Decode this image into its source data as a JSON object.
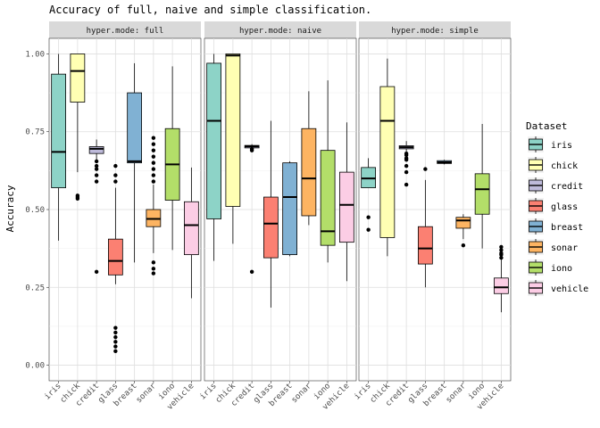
{
  "chart_data": {
    "type": "boxplot",
    "title": "Accuracy of full, naive and simple classification.",
    "ylabel": "Accuracy",
    "xlabel": "",
    "ylim": [
      -0.05,
      1.05
    ],
    "yticks": [
      0.0,
      0.25,
      0.5,
      0.75,
      1.0
    ],
    "ytick_labels": [
      "0.00",
      "0.25",
      "0.50",
      "0.75",
      "1.00"
    ],
    "categories": [
      "iris",
      "chick",
      "credit",
      "glass",
      "breast",
      "sonar",
      "iono",
      "vehicle"
    ],
    "colors": [
      "#8dd3c7",
      "#ffffb3",
      "#bebada",
      "#fb8072",
      "#80b1d3",
      "#fdb462",
      "#b3de69",
      "#fccde5"
    ],
    "legend": {
      "title": "Dataset",
      "position": "right"
    },
    "grid": true,
    "panels": [
      {
        "label": "hyper.mode: full",
        "boxes": [
          {
            "category": "iris",
            "min": 0.4,
            "q1": 0.57,
            "median": 0.685,
            "q3": 0.935,
            "max": 1.0,
            "outliers": []
          },
          {
            "category": "chick",
            "min": 0.62,
            "q1": 0.845,
            "median": 0.945,
            "q3": 1.0,
            "max": 1.0,
            "outliers": [
              0.535,
              0.54,
              0.545
            ]
          },
          {
            "category": "credit",
            "min": 0.655,
            "q1": 0.68,
            "median": 0.695,
            "q3": 0.702,
            "max": 0.725,
            "outliers": [
              0.3,
              0.59,
              0.61,
              0.63,
              0.64,
              0.655
            ]
          },
          {
            "category": "glass",
            "min": 0.26,
            "q1": 0.29,
            "median": 0.335,
            "q3": 0.405,
            "max": 0.57,
            "outliers": [
              0.045,
              0.06,
              0.075,
              0.09,
              0.105,
              0.12,
              0.59,
              0.61,
              0.64
            ]
          },
          {
            "category": "breast",
            "min": 0.33,
            "q1": 0.65,
            "median": 0.655,
            "q3": 0.875,
            "max": 0.97,
            "outliers": []
          },
          {
            "category": "sonar",
            "min": 0.36,
            "q1": 0.445,
            "median": 0.47,
            "q3": 0.5,
            "max": 0.58,
            "outliers": [
              0.295,
              0.31,
              0.33,
              0.59,
              0.61,
              0.63,
              0.65,
              0.67,
              0.69,
              0.71,
              0.73
            ]
          },
          {
            "category": "iono",
            "min": 0.37,
            "q1": 0.53,
            "median": 0.645,
            "q3": 0.76,
            "max": 0.96,
            "outliers": []
          },
          {
            "category": "vehicle",
            "min": 0.215,
            "q1": 0.355,
            "median": 0.45,
            "q3": 0.525,
            "max": 0.635,
            "outliers": []
          }
        ]
      },
      {
        "label": "hyper.mode: naive",
        "boxes": [
          {
            "category": "iris",
            "min": 0.335,
            "q1": 0.47,
            "median": 0.785,
            "q3": 0.97,
            "max": 1.0,
            "outliers": []
          },
          {
            "category": "chick",
            "min": 0.39,
            "q1": 0.51,
            "median": 0.995,
            "q3": 1.0,
            "max": 1.0,
            "outliers": []
          },
          {
            "category": "credit",
            "min": 0.69,
            "q1": 0.698,
            "median": 0.703,
            "q3": 0.706,
            "max": 0.71,
            "outliers": [
              0.3,
              0.69,
              0.695
            ]
          },
          {
            "category": "glass",
            "min": 0.185,
            "q1": 0.345,
            "median": 0.455,
            "q3": 0.54,
            "max": 0.785,
            "outliers": []
          },
          {
            "category": "breast",
            "min": 0.35,
            "q1": 0.355,
            "median": 0.54,
            "q3": 0.65,
            "max": 0.655,
            "outliers": []
          },
          {
            "category": "sonar",
            "min": 0.45,
            "q1": 0.48,
            "median": 0.6,
            "q3": 0.76,
            "max": 0.88,
            "outliers": []
          },
          {
            "category": "iono",
            "min": 0.33,
            "q1": 0.385,
            "median": 0.43,
            "q3": 0.69,
            "max": 0.915,
            "outliers": []
          },
          {
            "category": "vehicle",
            "min": 0.27,
            "q1": 0.395,
            "median": 0.515,
            "q3": 0.62,
            "max": 0.78,
            "outliers": []
          }
        ]
      },
      {
        "label": "hyper.mode: simple",
        "boxes": [
          {
            "category": "iris",
            "min": 0.57,
            "q1": 0.57,
            "median": 0.6,
            "q3": 0.635,
            "max": 0.665,
            "outliers": [
              0.435,
              0.475
            ]
          },
          {
            "category": "chick",
            "min": 0.35,
            "q1": 0.41,
            "median": 0.785,
            "q3": 0.895,
            "max": 0.985,
            "outliers": []
          },
          {
            "category": "credit",
            "min": 0.68,
            "q1": 0.695,
            "median": 0.7,
            "q3": 0.705,
            "max": 0.72,
            "outliers": [
              0.58,
              0.62,
              0.64,
              0.66,
              0.665,
              0.675,
              0.68
            ]
          },
          {
            "category": "glass",
            "min": 0.25,
            "q1": 0.325,
            "median": 0.375,
            "q3": 0.445,
            "max": 0.595,
            "outliers": [
              0.63
            ]
          },
          {
            "category": "breast",
            "min": 0.645,
            "q1": 0.648,
            "median": 0.652,
            "q3": 0.657,
            "max": 0.66,
            "outliers": []
          },
          {
            "category": "sonar",
            "min": 0.405,
            "q1": 0.44,
            "median": 0.465,
            "q3": 0.475,
            "max": 0.485,
            "outliers": [
              0.385
            ]
          },
          {
            "category": "iono",
            "min": 0.375,
            "q1": 0.485,
            "median": 0.565,
            "q3": 0.615,
            "max": 0.775,
            "outliers": []
          },
          {
            "category": "vehicle",
            "min": 0.17,
            "q1": 0.23,
            "median": 0.25,
            "q3": 0.28,
            "max": 0.34,
            "outliers": [
              0.345,
              0.355,
              0.36,
              0.37,
              0.38
            ]
          }
        ]
      }
    ]
  }
}
